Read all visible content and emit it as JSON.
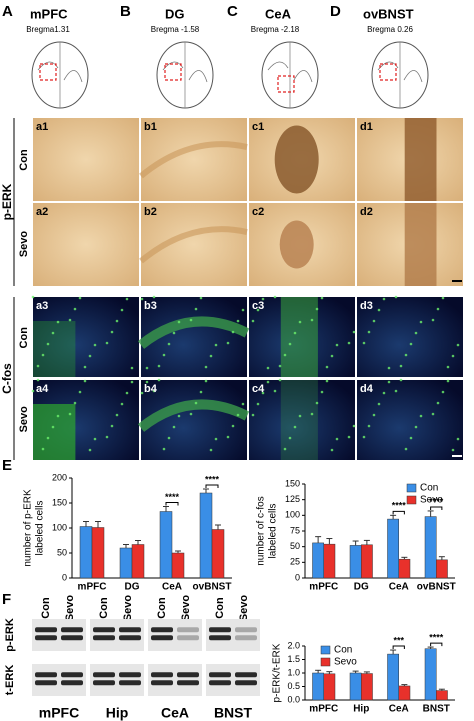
{
  "atlas": [
    {
      "letter": "A",
      "region": "mPFC",
      "bregma": "Bregma1.31"
    },
    {
      "letter": "B",
      "region": "DG",
      "bregma": "Bregma -1.58"
    },
    {
      "letter": "C",
      "region": "CeA",
      "bregma": "Bregma -2.18"
    },
    {
      "letter": "D",
      "region": "ovBNST",
      "bregma": "Bregma 0.26"
    }
  ],
  "perk": {
    "label": "p-ERK",
    "rows": [
      "Con",
      "Sevo"
    ],
    "tiles": [
      [
        "a1",
        "b1",
        "c1",
        "d1"
      ],
      [
        "a2",
        "b2",
        "c2",
        "d2"
      ]
    ]
  },
  "cfos": {
    "label": "C-fos",
    "rows": [
      "Con",
      "Sevo"
    ],
    "tiles": [
      [
        "a3",
        "b3",
        "c3",
        "d3"
      ],
      [
        "a4",
        "b4",
        "c4",
        "d4"
      ]
    ]
  },
  "panel_e": {
    "letter": "E"
  },
  "blot": {
    "letter": "F",
    "columns": [
      "Con",
      "Sevo"
    ],
    "rows": [
      "p-ERK",
      "t-ERK"
    ],
    "regions": [
      "mPFC",
      "Hip",
      "CeA",
      "BNST"
    ]
  },
  "chart_data": [
    {
      "type": "bar",
      "ylabel": [
        "number of p-ERK",
        "labeled cells"
      ],
      "categories": [
        "mPFC",
        "DG",
        "CeA",
        "ovBNST"
      ],
      "series": [
        {
          "name": "Con",
          "color": "#3a8ee6",
          "values": [
            103,
            60,
            133,
            170
          ],
          "errors": [
            10,
            7,
            10,
            8
          ]
        },
        {
          "name": "Sevo",
          "color": "#e8312b",
          "values": [
            101,
            67,
            50,
            97
          ],
          "errors": [
            12,
            8,
            4,
            9
          ]
        }
      ],
      "ylim": [
        0,
        200
      ],
      "yticks": [
        0,
        50,
        100,
        150,
        200
      ],
      "significance": [
        null,
        null,
        "****",
        "****"
      ]
    },
    {
      "type": "bar",
      "ylabel": [
        "number of c-fos",
        "labeled cells"
      ],
      "categories": [
        "mPFC",
        "DG",
        "CeA",
        "ovBNST"
      ],
      "series": [
        {
          "name": "Con",
          "color": "#3a8ee6",
          "values": [
            56,
            52,
            94,
            98
          ],
          "errors": [
            10,
            7,
            6,
            9
          ]
        },
        {
          "name": "Sevo",
          "color": "#e8312b",
          "values": [
            54,
            53,
            30,
            29
          ],
          "errors": [
            9,
            7,
            3,
            5
          ]
        }
      ],
      "ylim": [
        0,
        150
      ],
      "yticks": [
        0,
        25,
        50,
        75,
        100,
        125,
        150
      ],
      "significance": [
        null,
        null,
        "****",
        "****"
      ],
      "legend": "upper right"
    },
    {
      "type": "bar",
      "ylabel": [
        "p-ERK/t-ERK"
      ],
      "categories": [
        "mPFC",
        "Hip",
        "CeA",
        "BNST"
      ],
      "series": [
        {
          "name": "Con",
          "color": "#3a8ee6",
          "values": [
            1.0,
            1.0,
            1.7,
            1.9
          ],
          "errors": [
            0.1,
            0.07,
            0.15,
            0.06
          ]
        },
        {
          "name": "Sevo",
          "color": "#e8312b",
          "values": [
            0.97,
            0.98,
            0.52,
            0.35
          ],
          "errors": [
            0.08,
            0.06,
            0.05,
            0.05
          ]
        }
      ],
      "ylim": [
        0,
        2
      ],
      "yticks": [
        {
          "value": 0,
          "label": "0.0"
        },
        {
          "value": 0.5,
          "label": "0.5"
        },
        {
          "value": 1,
          "label": "1.0"
        },
        {
          "value": 1.5,
          "label": "1.5"
        },
        {
          "value": 2,
          "label": "2.0"
        }
      ],
      "significance": [
        null,
        null,
        "***",
        "****"
      ],
      "legend": "upper left"
    }
  ]
}
